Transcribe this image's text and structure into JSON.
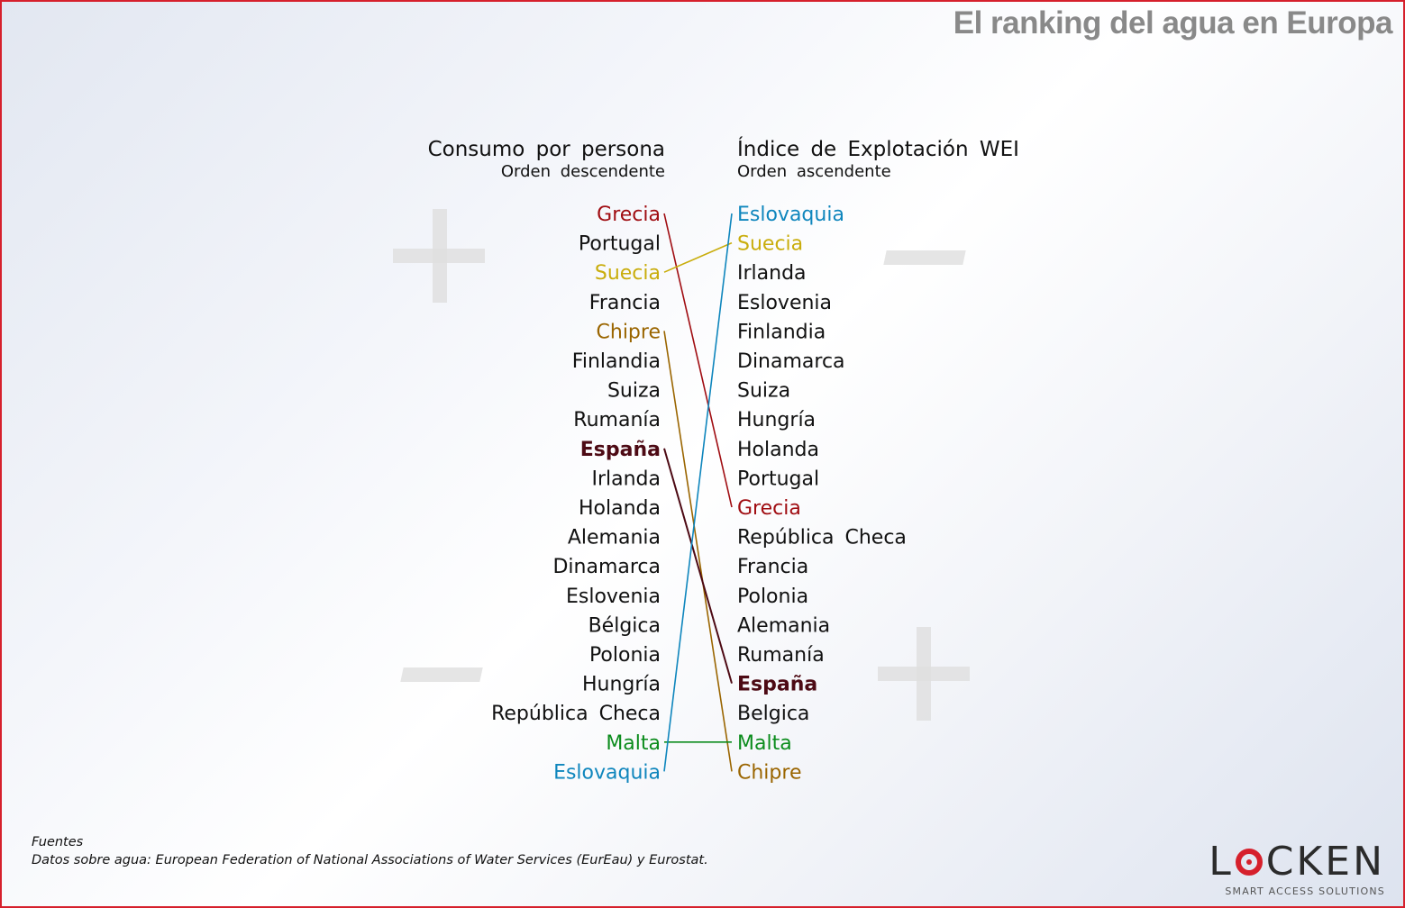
{
  "header": {
    "title": "El ranking del agua en Europa"
  },
  "chart_data": {
    "type": "bump",
    "left": {
      "title": "Consumo por persona",
      "subtitle": "Orden descendente",
      "items": [
        "Grecia",
        "Portugal",
        "Suecia",
        "Francia",
        "Chipre",
        "Finlandia",
        "Suiza",
        "Rumanía",
        "España",
        "Irlanda",
        "Holanda",
        "Alemania",
        "Dinamarca",
        "Eslovenia",
        "Bélgica",
        "Polonia",
        "Hungría",
        "República Checa",
        "Malta",
        "Eslovaquia"
      ]
    },
    "right": {
      "title": "Índice de Explotación WEI",
      "subtitle": "Orden ascendente",
      "items": [
        "Eslovaquia",
        "Suecia",
        "Irlanda",
        "Eslovenia",
        "Finlandia",
        "Dinamarca",
        "Suiza",
        "Hungría",
        "Holanda",
        "Portugal",
        "Grecia",
        "República Checa",
        "Francia",
        "Polonia",
        "Alemania",
        "Rumanía",
        "España",
        "Belgica",
        "Malta",
        "Chipre"
      ]
    },
    "links": [
      {
        "name": "Grecia",
        "left_rank": 1,
        "right_rank": 11,
        "color": "#a00d12"
      },
      {
        "name": "Suecia",
        "left_rank": 3,
        "right_rank": 2,
        "color": "#c9ad0c"
      },
      {
        "name": "Chipre",
        "left_rank": 5,
        "right_rank": 20,
        "color": "#9a6500"
      },
      {
        "name": "España",
        "left_rank": 9,
        "right_rank": 17,
        "color": "#4d0a14",
        "bold": true
      },
      {
        "name": "Malta",
        "left_rank": 19,
        "right_rank": 19,
        "color": "#0c8c1d"
      },
      {
        "name": "Eslovaquia",
        "left_rank": 20,
        "right_rank": 1,
        "color": "#0f86bd"
      }
    ],
    "default_color": "#111111",
    "decorations": {
      "left_top": "+",
      "right_top": "−",
      "left_bottom": "−",
      "right_bottom": "+"
    }
  },
  "footer": {
    "sources_heading": "Fuentes",
    "sources_text": "Datos sobre agua: European Federation of National Associations of Water Services (EurEau) y Eurostat."
  },
  "logo": {
    "word_pre": "L",
    "word_post": "CKEN",
    "tagline": "SMART ACCESS SOLUTIONS"
  }
}
